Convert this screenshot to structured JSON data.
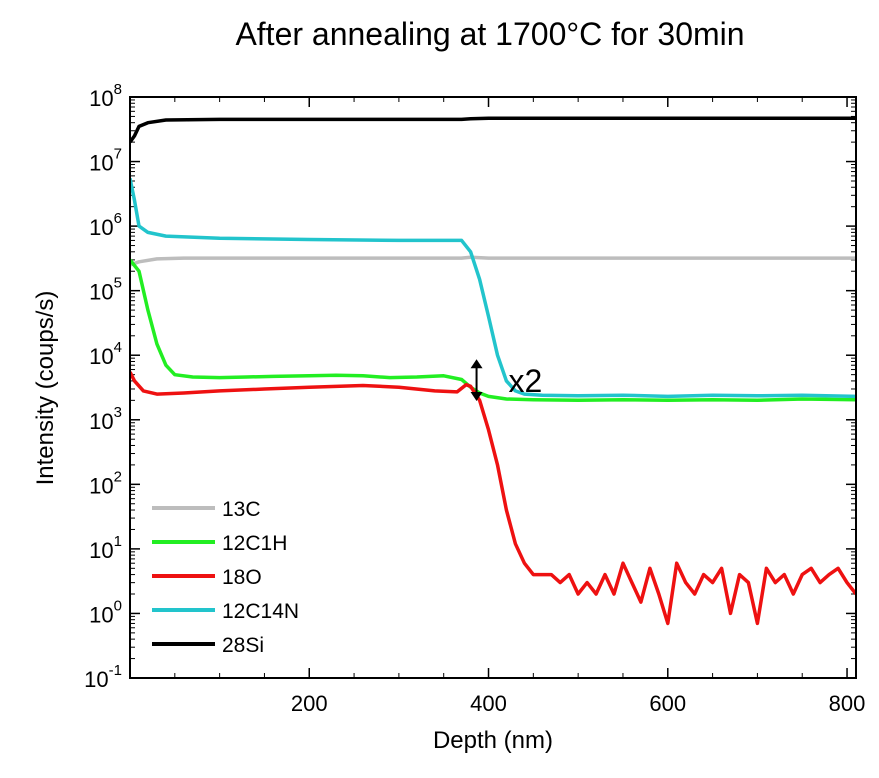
{
  "chart_data": {
    "type": "line",
    "title": "After annealing at 1700°C for 30min",
    "xlabel": "Depth (nm)",
    "ylabel": "Intensity (coups/s)",
    "xlim": [
      0,
      810
    ],
    "ylim_log10": [
      -1,
      8
    ],
    "y_scale": "log",
    "x_ticks": [
      200,
      400,
      600,
      800
    ],
    "y_tick_labels": [
      {
        "exp": -1,
        "base": "10",
        "power": "-1"
      },
      {
        "exp": 0,
        "base": "10",
        "power": "0"
      },
      {
        "exp": 1,
        "base": "10",
        "power": "1"
      },
      {
        "exp": 2,
        "base": "10",
        "power": "2"
      },
      {
        "exp": 3,
        "base": "10",
        "power": "3"
      },
      {
        "exp": 4,
        "base": "10",
        "power": "4"
      },
      {
        "exp": 5,
        "base": "10",
        "power": "5"
      },
      {
        "exp": 6,
        "base": "10",
        "power": "6"
      },
      {
        "exp": 7,
        "base": "10",
        "power": "7"
      },
      {
        "exp": 8,
        "base": "10",
        "power": "8"
      }
    ],
    "annotation": {
      "text": "x2",
      "x": 390,
      "y_low": 2100,
      "y_high": 7500
    },
    "legend_position": "bottom-left",
    "series": [
      {
        "name": "13C",
        "color": "#bdbdbd",
        "points": [
          [
            0,
            250000
          ],
          [
            10,
            280000
          ],
          [
            30,
            310000
          ],
          [
            60,
            320000
          ],
          [
            150,
            320000
          ],
          [
            300,
            320000
          ],
          [
            370,
            320000
          ],
          [
            380,
            330000
          ],
          [
            400,
            320000
          ],
          [
            500,
            320000
          ],
          [
            650,
            320000
          ],
          [
            810,
            320000
          ]
        ]
      },
      {
        "name": "12C1H",
        "color": "#22ee22",
        "points": [
          [
            0,
            300000
          ],
          [
            10,
            200000
          ],
          [
            20,
            50000
          ],
          [
            30,
            15000
          ],
          [
            40,
            7000
          ],
          [
            50,
            5000
          ],
          [
            70,
            4600
          ],
          [
            100,
            4500
          ],
          [
            130,
            4600
          ],
          [
            160,
            4700
          ],
          [
            200,
            4800
          ],
          [
            230,
            4900
          ],
          [
            260,
            4800
          ],
          [
            290,
            4500
          ],
          [
            320,
            4600
          ],
          [
            350,
            4800
          ],
          [
            370,
            4200
          ],
          [
            380,
            3200
          ],
          [
            390,
            2600
          ],
          [
            400,
            2300
          ],
          [
            420,
            2100
          ],
          [
            450,
            2050
          ],
          [
            500,
            2000
          ],
          [
            550,
            2050
          ],
          [
            600,
            2000
          ],
          [
            650,
            2050
          ],
          [
            700,
            2000
          ],
          [
            750,
            2100
          ],
          [
            810,
            2050
          ]
        ]
      },
      {
        "name": "18O",
        "color": "#ee1111",
        "points": [
          [
            0,
            5500
          ],
          [
            5,
            4000
          ],
          [
            15,
            2800
          ],
          [
            30,
            2500
          ],
          [
            60,
            2600
          ],
          [
            100,
            2800
          ],
          [
            150,
            3000
          ],
          [
            200,
            3200
          ],
          [
            260,
            3400
          ],
          [
            300,
            3200
          ],
          [
            340,
            2800
          ],
          [
            365,
            2700
          ],
          [
            375,
            3500
          ],
          [
            380,
            3300
          ],
          [
            390,
            2000
          ],
          [
            400,
            700
          ],
          [
            410,
            200
          ],
          [
            420,
            40
          ],
          [
            430,
            12
          ],
          [
            440,
            6
          ],
          [
            450,
            4
          ],
          [
            460,
            4
          ],
          [
            470,
            4
          ],
          [
            480,
            3
          ],
          [
            490,
            4
          ],
          [
            500,
            2
          ],
          [
            510,
            3
          ],
          [
            520,
            2
          ],
          [
            530,
            4
          ],
          [
            540,
            2
          ],
          [
            550,
            6
          ],
          [
            560,
            3
          ],
          [
            570,
            1.5
          ],
          [
            580,
            5
          ],
          [
            590,
            2
          ],
          [
            600,
            0.7
          ],
          [
            610,
            6
          ],
          [
            620,
            3
          ],
          [
            630,
            2
          ],
          [
            640,
            4
          ],
          [
            650,
            3
          ],
          [
            660,
            5
          ],
          [
            670,
            1
          ],
          [
            680,
            4
          ],
          [
            690,
            3
          ],
          [
            700,
            0.7
          ],
          [
            710,
            5
          ],
          [
            720,
            3
          ],
          [
            730,
            4
          ],
          [
            740,
            2
          ],
          [
            750,
            4
          ],
          [
            760,
            5
          ],
          [
            770,
            3
          ],
          [
            780,
            4
          ],
          [
            790,
            5
          ],
          [
            800,
            3
          ],
          [
            810,
            2
          ]
        ]
      },
      {
        "name": "12C14N",
        "color": "#22c4cc",
        "points": [
          [
            0,
            5500000
          ],
          [
            5,
            2500000
          ],
          [
            10,
            1000000
          ],
          [
            20,
            800000
          ],
          [
            40,
            700000
          ],
          [
            100,
            650000
          ],
          [
            200,
            620000
          ],
          [
            300,
            600000
          ],
          [
            350,
            600000
          ],
          [
            370,
            600000
          ],
          [
            380,
            400000
          ],
          [
            390,
            150000
          ],
          [
            400,
            40000
          ],
          [
            410,
            10000
          ],
          [
            420,
            4000
          ],
          [
            430,
            2800
          ],
          [
            440,
            2500
          ],
          [
            460,
            2400
          ],
          [
            500,
            2350
          ],
          [
            550,
            2400
          ],
          [
            600,
            2300
          ],
          [
            650,
            2400
          ],
          [
            700,
            2350
          ],
          [
            750,
            2400
          ],
          [
            810,
            2300
          ]
        ]
      },
      {
        "name": "28Si",
        "color": "#000000",
        "points": [
          [
            0,
            20000000
          ],
          [
            5,
            25000000
          ],
          [
            10,
            35000000
          ],
          [
            20,
            40000000
          ],
          [
            40,
            44000000
          ],
          [
            100,
            45000000
          ],
          [
            200,
            45000000
          ],
          [
            300,
            45000000
          ],
          [
            370,
            45000000
          ],
          [
            380,
            46000000
          ],
          [
            400,
            47000000
          ],
          [
            500,
            47000000
          ],
          [
            600,
            47000000
          ],
          [
            700,
            47000000
          ],
          [
            810,
            47000000
          ]
        ]
      }
    ]
  }
}
